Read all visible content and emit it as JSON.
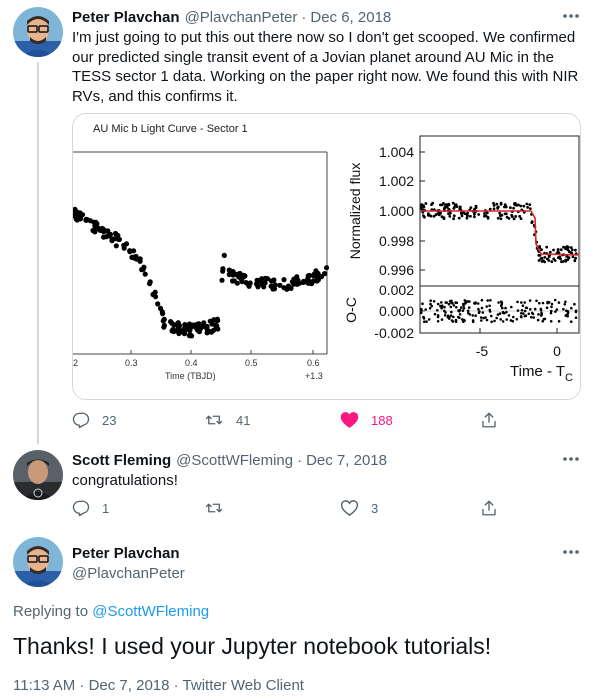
{
  "tweet1": {
    "name": "Peter Plavchan",
    "handle": "@PlavchanPeter",
    "separator": "·",
    "date": "Dec 6, 2018",
    "text": "I'm just going to put this out there now so I don't get scooped.  We confirmed our predicted single transit event of a Jovian planet around AU Mic in the TESS sector 1 data. Working on the paper right now.  We found this with NIR RVs, and this confirms it.",
    "more_icon": "ellipsis-icon",
    "media": {
      "left_title": "AU Mic b Light Curve - Sector 1",
      "left_xticks": [
        "2",
        "0.3",
        "0.4",
        "0.5",
        "0.6"
      ],
      "left_xlabel": "Time (TBJD)",
      "left_offset": "+1.3",
      "right_ylabel_top": "Normalized flux",
      "right_ylabel_bottom": "O-C",
      "right_yticks_top": [
        "1.004",
        "1.002",
        "1.000",
        "0.998",
        "0.996"
      ],
      "right_yticks_bottom": [
        "0.002",
        "0.000",
        "-0.002"
      ],
      "right_xticks": [
        "-5",
        "0"
      ],
      "right_xlabel_main": "Time - T",
      "right_xlabel_sub": "C",
      "model_color": "#d62728",
      "point_color": "#000000"
    },
    "actions": {
      "reply_count": "23",
      "retweet_count": "41",
      "like_count": "188",
      "like_color": "#f91880"
    }
  },
  "tweet2": {
    "name": "Scott Fleming",
    "handle": "@ScottWFleming",
    "separator": "·",
    "date": "Dec 7, 2018",
    "text": "congratulations!",
    "more_icon": "ellipsis-icon",
    "actions": {
      "reply_count": "1",
      "retweet_count": "",
      "like_count": "3"
    }
  },
  "tweet3": {
    "name": "Peter Plavchan",
    "handle": "@PlavchanPeter",
    "more_icon": "ellipsis-icon",
    "replying_prefix": "Replying to",
    "replying_handle": "@ScottWFleming",
    "text": "Thanks! I used your Jupyter notebook tutorials!",
    "meta": "11:13 AM · Dec 7, 2018 · Twitter Web Client"
  },
  "colors": {
    "text": "#0f1419",
    "muted": "#536471",
    "link": "#1d9bf0",
    "border": "#cfd9de"
  }
}
